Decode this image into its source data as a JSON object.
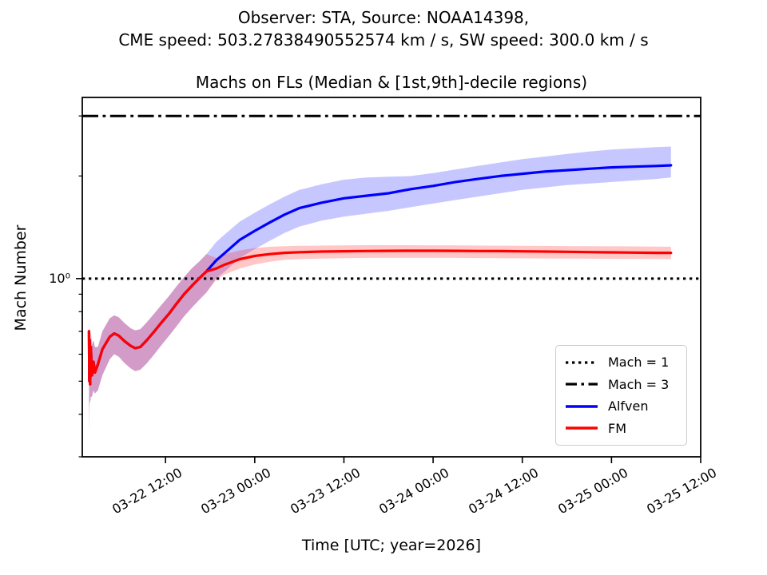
{
  "suptitle": {
    "line1": "Observer: STA, Source: NOAA14398,",
    "line2": "CME speed: 503.27838490552574 km / s, SW speed: 300.0 km / s"
  },
  "chart": {
    "title": "Machs on FLs (Median & [1st,9th]-decile regions)",
    "xlabel": "Time [UTC; year=2026]",
    "ylabel": "Mach Number",
    "ytick_label": "10⁰"
  },
  "legend": {
    "items": [
      {
        "label": "Mach = 1",
        "style": "dotted",
        "color": "#000000"
      },
      {
        "label": "Mach = 3",
        "style": "dashdot",
        "color": "#000000"
      },
      {
        "label": "Alfven",
        "style": "solid",
        "color": "#0000ff"
      },
      {
        "label": "FM",
        "style": "solid",
        "color": "#ff0000"
      }
    ]
  },
  "chart_data": {
    "type": "line",
    "title": "Machs on FLs (Median & [1st,9th]-decile regions)",
    "xlabel": "Time [UTC; year=2026]",
    "ylabel": "Mach Number",
    "x_axis": {
      "unit": "hours since 2026-03-22 00:00 UTC",
      "range": [
        0.8,
        84
      ],
      "ticks": [
        12,
        24,
        36,
        48,
        60,
        72,
        84
      ],
      "tick_labels": [
        "03-22 12:00",
        "03-23 00:00",
        "03-23 12:00",
        "03-24 00:00",
        "03-24 12:00",
        "03-25 00:00",
        "03-25 12:00"
      ],
      "tick_rotation_deg": 30
    },
    "y_axis": {
      "scale": "log",
      "range": [
        0.3,
        3.4
      ],
      "major_ticks": [
        1
      ],
      "major_tick_labels": [
        "10⁰"
      ],
      "minor_ticks": [
        0.3,
        0.4,
        0.5,
        0.6,
        0.7,
        0.8,
        0.9,
        2,
        3
      ]
    },
    "grid": false,
    "legend_position": "lower right",
    "reference_lines": [
      {
        "label": "Mach = 1",
        "value": 1,
        "style": "dotted",
        "color": "#000000"
      },
      {
        "label": "Mach = 3",
        "value": 3,
        "style": "dashdot",
        "color": "#000000"
      }
    ],
    "series": [
      {
        "name": "Alfven",
        "color": "#0000ff",
        "band_color": "rgba(0,0,255,0.22)",
        "t": [
          1.7,
          1.75,
          1.8,
          1.85,
          1.95,
          2.1,
          2.3,
          2.5,
          2.9,
          3.5,
          4.5,
          5.1,
          5.7,
          6.5,
          7.3,
          7.9,
          8.6,
          9.5,
          10.5,
          11.5,
          12.5,
          13.5,
          14.5,
          15.5,
          16.5,
          17.5,
          18.8,
          20,
          22,
          24,
          26,
          28,
          30,
          33,
          36,
          39,
          42,
          45,
          48,
          51,
          54,
          57,
          60,
          63,
          66,
          69,
          72,
          75,
          78,
          80
        ],
        "median": [
          0.7,
          0.5,
          0.66,
          0.49,
          0.63,
          0.52,
          0.57,
          0.53,
          0.56,
          0.62,
          0.675,
          0.69,
          0.68,
          0.655,
          0.635,
          0.625,
          0.63,
          0.66,
          0.7,
          0.745,
          0.79,
          0.845,
          0.9,
          0.95,
          1.0,
          1.05,
          1.13,
          1.19,
          1.3,
          1.38,
          1.46,
          1.54,
          1.61,
          1.67,
          1.72,
          1.75,
          1.78,
          1.83,
          1.87,
          1.92,
          1.96,
          2.0,
          2.03,
          2.06,
          2.08,
          2.1,
          2.12,
          2.13,
          2.14,
          2.15
        ],
        "decile_lo": [
          0.35,
          0.42,
          0.44,
          0.43,
          0.45,
          0.45,
          0.47,
          0.46,
          0.47,
          0.52,
          0.58,
          0.6,
          0.59,
          0.565,
          0.545,
          0.535,
          0.54,
          0.565,
          0.6,
          0.64,
          0.68,
          0.725,
          0.775,
          0.82,
          0.865,
          0.91,
          1.0,
          1.05,
          1.15,
          1.22,
          1.29,
          1.36,
          1.42,
          1.48,
          1.52,
          1.55,
          1.58,
          1.62,
          1.66,
          1.7,
          1.74,
          1.78,
          1.82,
          1.85,
          1.88,
          1.9,
          1.92,
          1.94,
          1.96,
          1.98
        ],
        "decile_hi": [
          0.76,
          0.66,
          0.72,
          0.62,
          0.7,
          0.64,
          0.66,
          0.63,
          0.63,
          0.7,
          0.765,
          0.78,
          0.77,
          0.74,
          0.715,
          0.705,
          0.71,
          0.745,
          0.79,
          0.84,
          0.89,
          0.95,
          1.01,
          1.07,
          1.12,
          1.18,
          1.28,
          1.35,
          1.47,
          1.56,
          1.65,
          1.74,
          1.82,
          1.89,
          1.95,
          1.98,
          1.99,
          2.0,
          2.04,
          2.09,
          2.14,
          2.19,
          2.24,
          2.28,
          2.32,
          2.36,
          2.39,
          2.41,
          2.43,
          2.44
        ]
      },
      {
        "name": "FM",
        "color": "#ff0000",
        "band_color": "rgba(255,0,0,0.22)",
        "t": [
          1.7,
          1.75,
          1.8,
          1.85,
          1.95,
          2.1,
          2.3,
          2.5,
          2.9,
          3.5,
          4.5,
          5.1,
          5.7,
          6.5,
          7.3,
          7.9,
          8.6,
          9.5,
          10.5,
          11.5,
          12.5,
          13.5,
          14.5,
          15.5,
          16.5,
          17.5,
          18.8,
          20,
          22,
          24,
          26,
          28,
          30,
          33,
          36,
          39,
          42,
          45,
          48,
          51,
          54,
          57,
          60,
          63,
          66,
          69,
          72,
          75,
          78,
          80
        ],
        "median": [
          0.7,
          0.5,
          0.66,
          0.49,
          0.63,
          0.52,
          0.57,
          0.53,
          0.56,
          0.62,
          0.675,
          0.69,
          0.68,
          0.655,
          0.635,
          0.625,
          0.63,
          0.66,
          0.7,
          0.745,
          0.79,
          0.845,
          0.9,
          0.95,
          1.0,
          1.05,
          1.07,
          1.1,
          1.14,
          1.165,
          1.18,
          1.19,
          1.195,
          1.2,
          1.203,
          1.205,
          1.206,
          1.207,
          1.207,
          1.206,
          1.205,
          1.204,
          1.202,
          1.2,
          1.198,
          1.196,
          1.194,
          1.192,
          1.19,
          1.19
        ],
        "decile_lo": [
          0.35,
          0.42,
          0.44,
          0.43,
          0.45,
          0.45,
          0.47,
          0.46,
          0.47,
          0.52,
          0.58,
          0.6,
          0.59,
          0.565,
          0.545,
          0.535,
          0.54,
          0.565,
          0.6,
          0.64,
          0.68,
          0.725,
          0.775,
          0.82,
          0.865,
          0.91,
          0.99,
          1.03,
          1.07,
          1.1,
          1.12,
          1.135,
          1.14,
          1.145,
          1.148,
          1.15,
          1.15,
          1.15,
          1.15,
          1.15,
          1.149,
          1.148,
          1.147,
          1.146,
          1.145,
          1.144,
          1.143,
          1.142,
          1.141,
          1.14
        ],
        "decile_hi": [
          0.76,
          0.66,
          0.72,
          0.62,
          0.7,
          0.64,
          0.66,
          0.63,
          0.63,
          0.7,
          0.765,
          0.78,
          0.77,
          0.74,
          0.715,
          0.705,
          0.71,
          0.745,
          0.79,
          0.84,
          0.89,
          0.95,
          1.01,
          1.07,
          1.12,
          1.18,
          1.15,
          1.18,
          1.21,
          1.23,
          1.24,
          1.245,
          1.248,
          1.25,
          1.252,
          1.253,
          1.253,
          1.253,
          1.252,
          1.251,
          1.25,
          1.249,
          1.248,
          1.247,
          1.246,
          1.245,
          1.244,
          1.243,
          1.242,
          1.24
        ]
      }
    ]
  }
}
